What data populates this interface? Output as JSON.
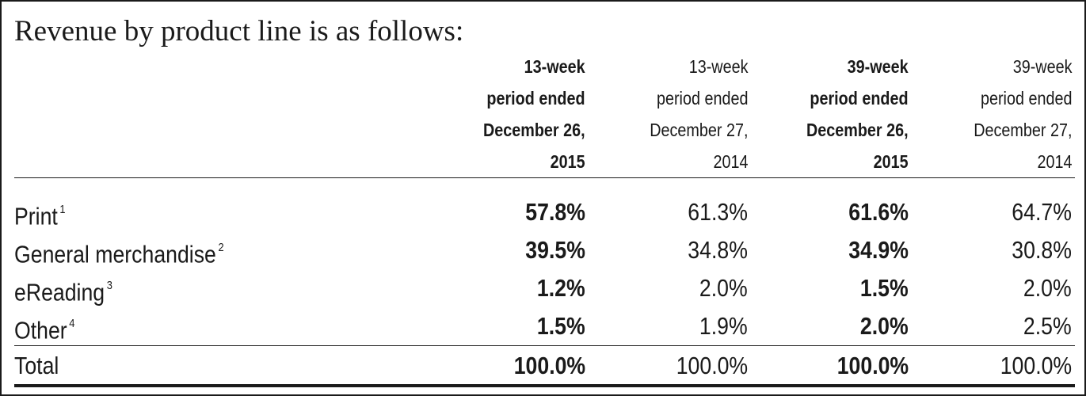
{
  "title": "Revenue by product line is as follows:",
  "columns": [
    {
      "lines": [
        "13-week",
        "period ended",
        "December 26,",
        "2015"
      ]
    },
    {
      "lines": [
        "13-week",
        "period ended",
        "December 27,",
        "2014"
      ]
    },
    {
      "lines": [
        "39-week",
        "period ended",
        "December 26,",
        "2015"
      ]
    },
    {
      "lines": [
        "39-week",
        "period ended",
        "December 27,",
        "2014"
      ]
    }
  ],
  "rows": [
    {
      "label": "Print",
      "footnote": "1",
      "values": [
        "57.8%",
        "61.3%",
        "61.6%",
        "64.7%"
      ]
    },
    {
      "label": "General merchandise",
      "footnote": "2",
      "values": [
        "39.5%",
        "34.8%",
        "34.9%",
        "30.8%"
      ]
    },
    {
      "label": "eReading",
      "footnote": "3",
      "values": [
        "1.2%",
        "2.0%",
        "1.5%",
        "2.0%"
      ]
    },
    {
      "label": "Other",
      "footnote": "4",
      "values": [
        "1.5%",
        "1.9%",
        "2.0%",
        "2.5%"
      ]
    }
  ],
  "total": {
    "label": "Total",
    "values": [
      "100.0%",
      "100.0%",
      "100.0%",
      "100.0%"
    ]
  }
}
